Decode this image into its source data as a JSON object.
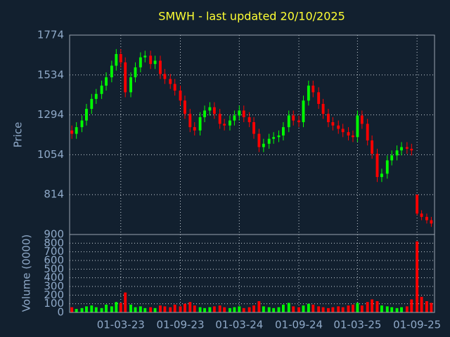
{
  "chart_data": {
    "type": "candlestick",
    "title": "SMWH - last updated 20/10/2025",
    "ylabel": "Price",
    "ylim": [
      574,
      1774
    ],
    "yticks": [
      814,
      1054,
      1294,
      1534,
      1774
    ],
    "xlim": [
      "24-09-22",
      "25-10-25"
    ],
    "xticks": [
      "01-03-23",
      "01-09-23",
      "01-03-24",
      "01-09-24",
      "01-03-25",
      "01-09-25"
    ],
    "grid": true,
    "up_color": "#00ff00",
    "down_color": "#ff0000",
    "x": [
      "01-10-22",
      "15-10-22",
      "01-11-22",
      "15-11-22",
      "01-12-22",
      "15-12-22",
      "01-01-23",
      "15-01-23",
      "01-02-23",
      "15-02-23",
      "01-03-23",
      "15-03-23",
      "01-04-23",
      "15-04-23",
      "01-05-23",
      "15-05-23",
      "01-06-23",
      "15-06-23",
      "01-07-23",
      "15-07-23",
      "01-08-23",
      "15-08-23",
      "01-09-23",
      "15-09-23",
      "01-10-23",
      "15-10-23",
      "01-11-23",
      "15-11-23",
      "01-12-23",
      "15-12-23",
      "01-01-24",
      "15-01-24",
      "01-02-24",
      "15-02-24",
      "01-03-24",
      "15-03-24",
      "01-04-24",
      "15-04-24",
      "01-05-24",
      "15-05-24",
      "01-06-24",
      "15-06-24",
      "01-07-24",
      "15-07-24",
      "01-08-24",
      "15-08-24",
      "01-09-24",
      "15-09-24",
      "01-10-24",
      "15-10-24",
      "01-11-24",
      "15-11-24",
      "01-12-24",
      "15-12-24",
      "01-01-25",
      "15-01-25",
      "01-02-25",
      "15-02-25",
      "01-03-25",
      "15-03-25",
      "01-04-25",
      "15-04-25",
      "01-05-25",
      "15-05-25",
      "01-06-25",
      "15-06-25",
      "01-07-25",
      "15-07-25",
      "01-08-25",
      "15-08-25",
      "01-09-25",
      "15-09-25",
      "01-10-25",
      "15-10-25"
    ],
    "open": [
      1200,
      1180,
      1220,
      1260,
      1330,
      1390,
      1420,
      1470,
      1520,
      1590,
      1660,
      1610,
      1430,
      1520,
      1580,
      1640,
      1650,
      1600,
      1620,
      1540,
      1510,
      1480,
      1440,
      1380,
      1300,
      1220,
      1200,
      1280,
      1320,
      1340,
      1300,
      1240,
      1230,
      1260,
      1290,
      1320,
      1280,
      1250,
      1180,
      1100,
      1120,
      1150,
      1160,
      1170,
      1220,
      1290,
      1260,
      1250,
      1380,
      1470,
      1430,
      1360,
      1300,
      1250,
      1230,
      1210,
      1190,
      1170,
      1160,
      1290,
      1240,
      1140,
      1060,
      920,
      940,
      1020,
      1050,
      1080,
      1100,
      1090,
      814,
      700,
      680,
      660
    ],
    "high": [
      1230,
      1250,
      1290,
      1360,
      1420,
      1450,
      1500,
      1550,
      1620,
      1690,
      1690,
      1640,
      1550,
      1610,
      1670,
      1680,
      1680,
      1650,
      1650,
      1570,
      1540,
      1510,
      1470,
      1410,
      1330,
      1250,
      1310,
      1350,
      1370,
      1370,
      1330,
      1270,
      1290,
      1320,
      1350,
      1350,
      1310,
      1280,
      1210,
      1150,
      1180,
      1190,
      1200,
      1250,
      1320,
      1320,
      1290,
      1410,
      1500,
      1500,
      1460,
      1390,
      1330,
      1280,
      1260,
      1240,
      1220,
      1200,
      1320,
      1320,
      1270,
      1170,
      1090,
      970,
      1050,
      1080,
      1110,
      1130,
      1130,
      1120,
      814,
      720,
      700,
      680
    ],
    "low": [
      1150,
      1150,
      1190,
      1230,
      1300,
      1360,
      1390,
      1440,
      1490,
      1560,
      1580,
      1400,
      1400,
      1490,
      1550,
      1610,
      1570,
      1570,
      1510,
      1480,
      1450,
      1410,
      1350,
      1270,
      1190,
      1170,
      1170,
      1250,
      1290,
      1270,
      1210,
      1200,
      1200,
      1230,
      1260,
      1250,
      1220,
      1150,
      1070,
      1070,
      1090,
      1120,
      1130,
      1140,
      1190,
      1230,
      1220,
      1220,
      1350,
      1400,
      1330,
      1270,
      1220,
      1200,
      1180,
      1160,
      1140,
      1130,
      1130,
      1210,
      1110,
      1030,
      890,
      890,
      910,
      990,
      1020,
      1050,
      1060,
      1050,
      690,
      660,
      640,
      620
    ],
    "close": [
      1180,
      1220,
      1260,
      1330,
      1390,
      1420,
      1470,
      1520,
      1590,
      1660,
      1610,
      1430,
      1520,
      1580,
      1640,
      1650,
      1600,
      1620,
      1540,
      1510,
      1480,
      1440,
      1380,
      1300,
      1220,
      1200,
      1280,
      1320,
      1340,
      1300,
      1240,
      1230,
      1260,
      1290,
      1320,
      1280,
      1250,
      1180,
      1100,
      1120,
      1150,
      1160,
      1170,
      1220,
      1290,
      1260,
      1250,
      1380,
      1470,
      1430,
      1360,
      1300,
      1250,
      1230,
      1210,
      1190,
      1170,
      1160,
      1290,
      1240,
      1140,
      1060,
      920,
      940,
      1020,
      1050,
      1080,
      1100,
      1090,
      1080,
      700,
      680,
      660,
      640
    ],
    "volume": {
      "ylabel": "Volume (0000)",
      "ylim": [
        0,
        900
      ],
      "yticks": [
        0,
        100,
        200,
        300,
        400,
        500,
        600,
        700,
        800,
        900
      ],
      "values": [
        60,
        40,
        50,
        70,
        80,
        60,
        50,
        90,
        70,
        120,
        110,
        230,
        90,
        60,
        70,
        50,
        60,
        50,
        80,
        70,
        60,
        90,
        70,
        100,
        120,
        80,
        60,
        50,
        60,
        70,
        80,
        60,
        50,
        60,
        70,
        50,
        60,
        80,
        130,
        70,
        60,
        50,
        60,
        90,
        110,
        70,
        60,
        80,
        100,
        90,
        70,
        60,
        50,
        60,
        70,
        60,
        80,
        90,
        110,
        80,
        120,
        150,
        130,
        80,
        70,
        60,
        50,
        60,
        70,
        150,
        820,
        180,
        130,
        110
      ]
    }
  }
}
